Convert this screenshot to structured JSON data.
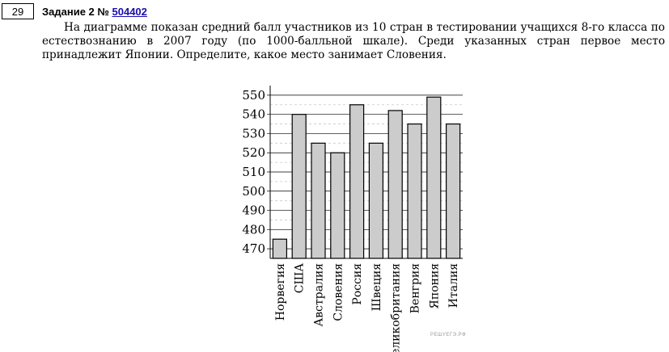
{
  "task": {
    "number": "29",
    "title_prefix": "Задание 2 № ",
    "id": "504402",
    "text": "На диаграмме показан средний балл участников из 10 стран в тестировании учащихся 8-го класса по естествознанию в 2007 году (по 1000-балльной шкале). Среди указанных стран первое место принадлежит Японии. Определите, какое место занимает Словения."
  },
  "watermark": "РЕШУЕГЭ.РФ",
  "chart_data": {
    "type": "bar",
    "categories": [
      "Норвегия",
      "США",
      "Австралия",
      "Словения",
      "Россия",
      "Швеция",
      "Великобритания",
      "Венгрия",
      "Япония",
      "Италия"
    ],
    "values": [
      475,
      540,
      525,
      520,
      545,
      525,
      542,
      535,
      549,
      535
    ],
    "yticks": [
      470,
      480,
      490,
      500,
      510,
      520,
      530,
      540,
      550
    ],
    "ylim": [
      465,
      555
    ],
    "grid": true,
    "colors": {
      "bar_fill": "#cccccc",
      "bar_stroke": "#000000",
      "grid": "#000000",
      "minor_grid": "#c8c8c8"
    }
  }
}
